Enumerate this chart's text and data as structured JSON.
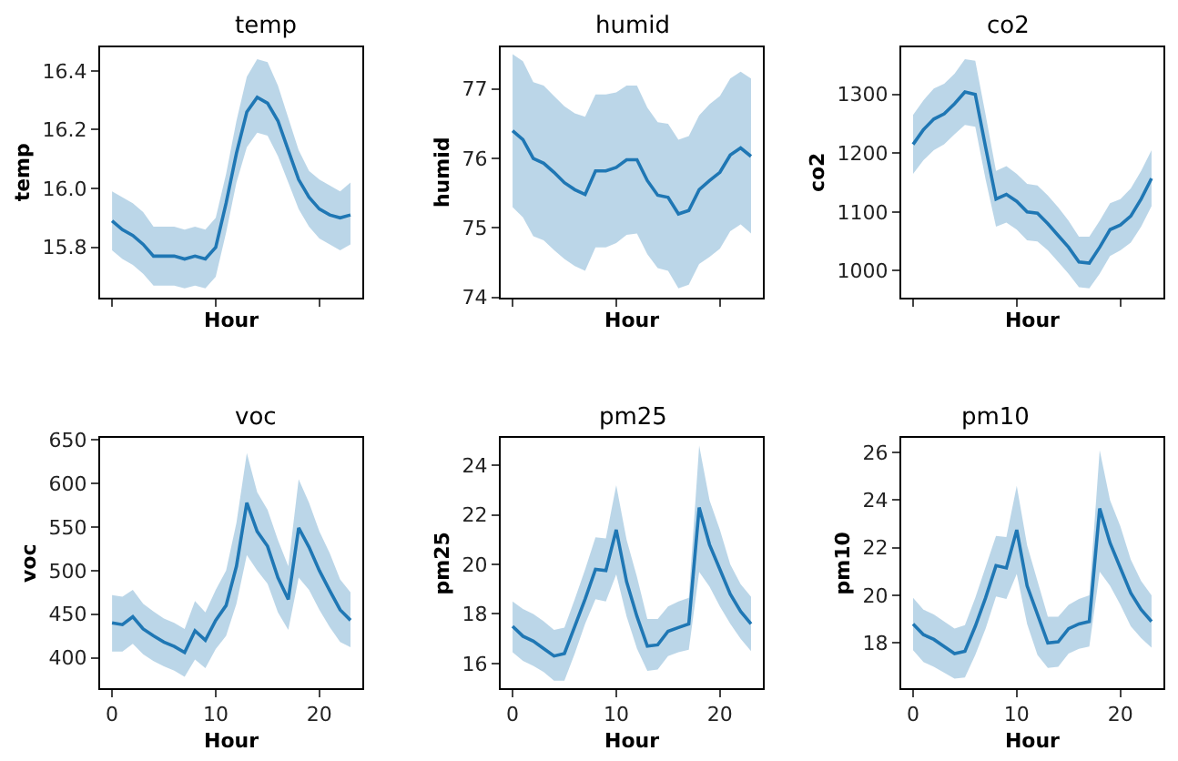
{
  "chart_data": [
    {
      "type": "line",
      "title": "temp",
      "xlabel": "Hour",
      "ylabel": "temp",
      "x": [
        0,
        1,
        2,
        3,
        4,
        5,
        6,
        7,
        8,
        9,
        10,
        11,
        12,
        13,
        14,
        15,
        16,
        17,
        18,
        19,
        20,
        21,
        22,
        23
      ],
      "xlim": [
        -1.15,
        24.15
      ],
      "xticks": [
        {
          "value": 0,
          "label": null
        },
        {
          "value": 10,
          "label": null
        },
        {
          "value": 20,
          "label": null
        }
      ],
      "ylim": [
        15.63,
        16.48
      ],
      "yticks": [
        {
          "value": 15.8,
          "label": "15.8"
        },
        {
          "value": 16.0,
          "label": "16.0"
        },
        {
          "value": 16.2,
          "label": "16.2"
        },
        {
          "value": 16.4,
          "label": "16.4"
        }
      ],
      "tick_labels": "y",
      "series": [
        {
          "color": "#1f77b4",
          "values": [
            15.89,
            15.86,
            15.84,
            15.81,
            15.77,
            15.77,
            15.77,
            15.76,
            15.77,
            15.76,
            15.8,
            15.95,
            16.12,
            16.26,
            16.31,
            16.29,
            16.23,
            16.13,
            16.03,
            15.97,
            15.93,
            15.91,
            15.9,
            15.91
          ],
          "upper": [
            15.99,
            15.97,
            15.95,
            15.92,
            15.87,
            15.87,
            15.87,
            15.86,
            15.87,
            15.86,
            15.9,
            16.05,
            16.23,
            16.38,
            16.44,
            16.43,
            16.35,
            16.24,
            16.13,
            16.06,
            16.03,
            16.01,
            15.99,
            16.02
          ],
          "lower": [
            15.79,
            15.76,
            15.74,
            15.71,
            15.67,
            15.67,
            15.67,
            15.66,
            15.67,
            15.66,
            15.7,
            15.85,
            16.02,
            16.14,
            16.19,
            16.18,
            16.11,
            16.02,
            15.93,
            15.87,
            15.83,
            15.81,
            15.79,
            15.81
          ]
        }
      ]
    },
    {
      "type": "line",
      "title": "humid",
      "xlabel": "Hour",
      "ylabel": "humid",
      "x": [
        0,
        1,
        2,
        3,
        4,
        5,
        6,
        7,
        8,
        9,
        10,
        11,
        12,
        13,
        14,
        15,
        16,
        17,
        18,
        19,
        20,
        21,
        22,
        23
      ],
      "xlim": [
        -1.15,
        24.15
      ],
      "xticks": [
        {
          "value": 0,
          "label": null
        },
        {
          "value": 10,
          "label": null
        },
        {
          "value": 20,
          "label": null
        }
      ],
      "ylim": [
        74.0,
        77.6
      ],
      "yticks": [
        74,
        75,
        76,
        77
      ],
      "tick_labels": "y",
      "series": [
        {
          "color": "#1f77b4",
          "values": [
            76.4,
            76.27,
            76.0,
            75.93,
            75.8,
            75.65,
            75.55,
            75.48,
            75.82,
            75.82,
            75.87,
            75.98,
            75.98,
            75.68,
            75.47,
            75.44,
            75.2,
            75.25,
            75.55,
            75.68,
            75.8,
            76.05,
            76.15,
            76.03
          ],
          "upper": [
            77.5,
            77.4,
            77.1,
            77.05,
            76.9,
            76.75,
            76.65,
            76.6,
            76.92,
            76.92,
            76.95,
            77.05,
            77.05,
            76.73,
            76.52,
            76.5,
            76.27,
            76.32,
            76.62,
            76.78,
            76.9,
            77.15,
            77.25,
            77.15
          ],
          "lower": [
            75.3,
            75.15,
            74.88,
            74.82,
            74.68,
            74.55,
            74.45,
            74.38,
            74.72,
            74.72,
            74.78,
            74.9,
            74.92,
            74.62,
            74.42,
            74.38,
            74.13,
            74.18,
            74.48,
            74.58,
            74.7,
            74.95,
            75.05,
            74.92
          ]
        }
      ]
    },
    {
      "type": "line",
      "title": "co2",
      "xlabel": "Hour",
      "ylabel": "co2",
      "x": [
        0,
        1,
        2,
        3,
        4,
        5,
        6,
        7,
        8,
        9,
        10,
        11,
        12,
        13,
        14,
        15,
        16,
        17,
        18,
        19,
        20,
        21,
        22,
        23
      ],
      "xlim": [
        -1.15,
        24.15
      ],
      "xticks": [
        {
          "value": 0,
          "label": null
        },
        {
          "value": 10,
          "label": null
        },
        {
          "value": 20,
          "label": null
        }
      ],
      "ylim": [
        955,
        1380
      ],
      "yticks": [
        1000,
        1100,
        1200,
        1300
      ],
      "tick_labels": "y",
      "series": [
        {
          "color": "#1f77b4",
          "values": [
            1215,
            1240,
            1258,
            1267,
            1284,
            1304,
            1300,
            1210,
            1122,
            1130,
            1118,
            1100,
            1098,
            1080,
            1060,
            1040,
            1015,
            1013,
            1040,
            1070,
            1078,
            1093,
            1122,
            1157
          ],
          "upper": [
            1265,
            1290,
            1310,
            1318,
            1335,
            1360,
            1357,
            1265,
            1170,
            1178,
            1165,
            1148,
            1145,
            1128,
            1108,
            1085,
            1058,
            1058,
            1085,
            1115,
            1122,
            1140,
            1170,
            1205
          ],
          "lower": [
            1165,
            1188,
            1205,
            1215,
            1232,
            1248,
            1245,
            1155,
            1075,
            1082,
            1070,
            1052,
            1050,
            1035,
            1015,
            995,
            972,
            970,
            995,
            1025,
            1035,
            1048,
            1075,
            1110
          ]
        }
      ]
    },
    {
      "type": "line",
      "title": "voc",
      "xlabel": "Hour",
      "ylabel": "voc",
      "x": [
        0,
        1,
        2,
        3,
        4,
        5,
        6,
        7,
        8,
        9,
        10,
        11,
        12,
        13,
        14,
        15,
        16,
        17,
        18,
        19,
        20,
        21,
        22,
        23
      ],
      "xlim": [
        -1.15,
        24.15
      ],
      "xticks": [
        0,
        10,
        20
      ],
      "ylim": [
        365,
        652
      ],
      "yticks": [
        400,
        450,
        500,
        550,
        600,
        650
      ],
      "series": [
        {
          "color": "#1f77b4",
          "values": [
            440,
            438,
            447,
            433,
            425,
            418,
            413,
            406,
            431,
            420,
            443,
            460,
            505,
            578,
            545,
            528,
            492,
            467,
            549,
            527,
            500,
            477,
            455,
            443
          ],
          "upper": [
            472,
            470,
            478,
            462,
            453,
            445,
            440,
            433,
            465,
            452,
            478,
            500,
            555,
            635,
            590,
            570,
            535,
            505,
            605,
            578,
            545,
            520,
            490,
            475
          ],
          "lower": [
            407,
            407,
            416,
            404,
            396,
            390,
            385,
            378,
            398,
            388,
            410,
            425,
            462,
            518,
            500,
            485,
            452,
            432,
            492,
            478,
            455,
            435,
            418,
            412
          ]
        }
      ]
    },
    {
      "type": "line",
      "title": "pm25",
      "xlabel": "Hour",
      "ylabel": "pm25",
      "x": [
        0,
        1,
        2,
        3,
        4,
        5,
        6,
        7,
        8,
        9,
        10,
        11,
        12,
        13,
        14,
        15,
        16,
        17,
        18,
        19,
        20,
        21,
        22,
        23
      ],
      "xlim": [
        -1.15,
        24.15
      ],
      "xticks": [
        0,
        10,
        20
      ],
      "ylim": [
        15.0,
        25.1
      ],
      "yticks": [
        16,
        18,
        20,
        22,
        24
      ],
      "series": [
        {
          "color": "#1f77b4",
          "values": [
            17.5,
            17.1,
            16.9,
            16.6,
            16.3,
            16.4,
            17.5,
            18.6,
            19.8,
            19.75,
            21.4,
            19.3,
            17.9,
            16.7,
            16.75,
            17.3,
            17.45,
            17.6,
            22.3,
            20.8,
            19.8,
            18.8,
            18.1,
            17.6
          ],
          "upper": [
            18.5,
            18.2,
            18.0,
            17.7,
            17.35,
            17.45,
            18.6,
            19.8,
            21.1,
            21.05,
            23.2,
            21.0,
            19.5,
            17.8,
            17.8,
            18.3,
            18.5,
            18.65,
            24.8,
            22.6,
            21.4,
            20.0,
            19.2,
            18.7
          ],
          "lower": [
            16.45,
            16.1,
            15.9,
            15.65,
            15.3,
            15.3,
            16.4,
            17.6,
            18.6,
            18.5,
            19.6,
            17.9,
            16.6,
            15.7,
            15.75,
            16.3,
            16.45,
            16.55,
            19.7,
            19.1,
            18.3,
            17.6,
            17.0,
            16.5
          ]
        }
      ]
    },
    {
      "type": "line",
      "title": "pm10",
      "xlabel": "Hour",
      "ylabel": "pm10",
      "x": [
        0,
        1,
        2,
        3,
        4,
        5,
        6,
        7,
        8,
        9,
        10,
        11,
        12,
        13,
        14,
        15,
        16,
        17,
        18,
        19,
        20,
        21,
        22,
        23
      ],
      "xlim": [
        -1.15,
        24.15
      ],
      "xticks": [
        0,
        10,
        20
      ],
      "ylim": [
        16.1,
        26.6
      ],
      "yticks": [
        18,
        20,
        22,
        24,
        26
      ],
      "series": [
        {
          "color": "#1f77b4",
          "values": [
            18.8,
            18.35,
            18.15,
            17.85,
            17.55,
            17.65,
            18.7,
            19.9,
            21.25,
            21.15,
            22.75,
            20.4,
            19.2,
            18.0,
            18.05,
            18.6,
            18.8,
            18.9,
            23.65,
            22.2,
            21.15,
            20.1,
            19.4,
            18.9
          ],
          "upper": [
            19.9,
            19.4,
            19.2,
            18.9,
            18.6,
            18.75,
            19.9,
            21.2,
            22.5,
            22.45,
            24.6,
            22.1,
            20.6,
            19.1,
            19.1,
            19.6,
            19.85,
            20.0,
            26.1,
            24.0,
            22.9,
            21.5,
            20.6,
            20.0
          ],
          "lower": [
            17.7,
            17.2,
            17.0,
            16.75,
            16.5,
            16.55,
            17.5,
            18.6,
            19.95,
            19.85,
            20.9,
            18.8,
            17.5,
            16.95,
            17.0,
            17.55,
            17.75,
            17.85,
            21.0,
            20.4,
            19.6,
            18.7,
            18.2,
            17.8
          ]
        }
      ]
    }
  ]
}
